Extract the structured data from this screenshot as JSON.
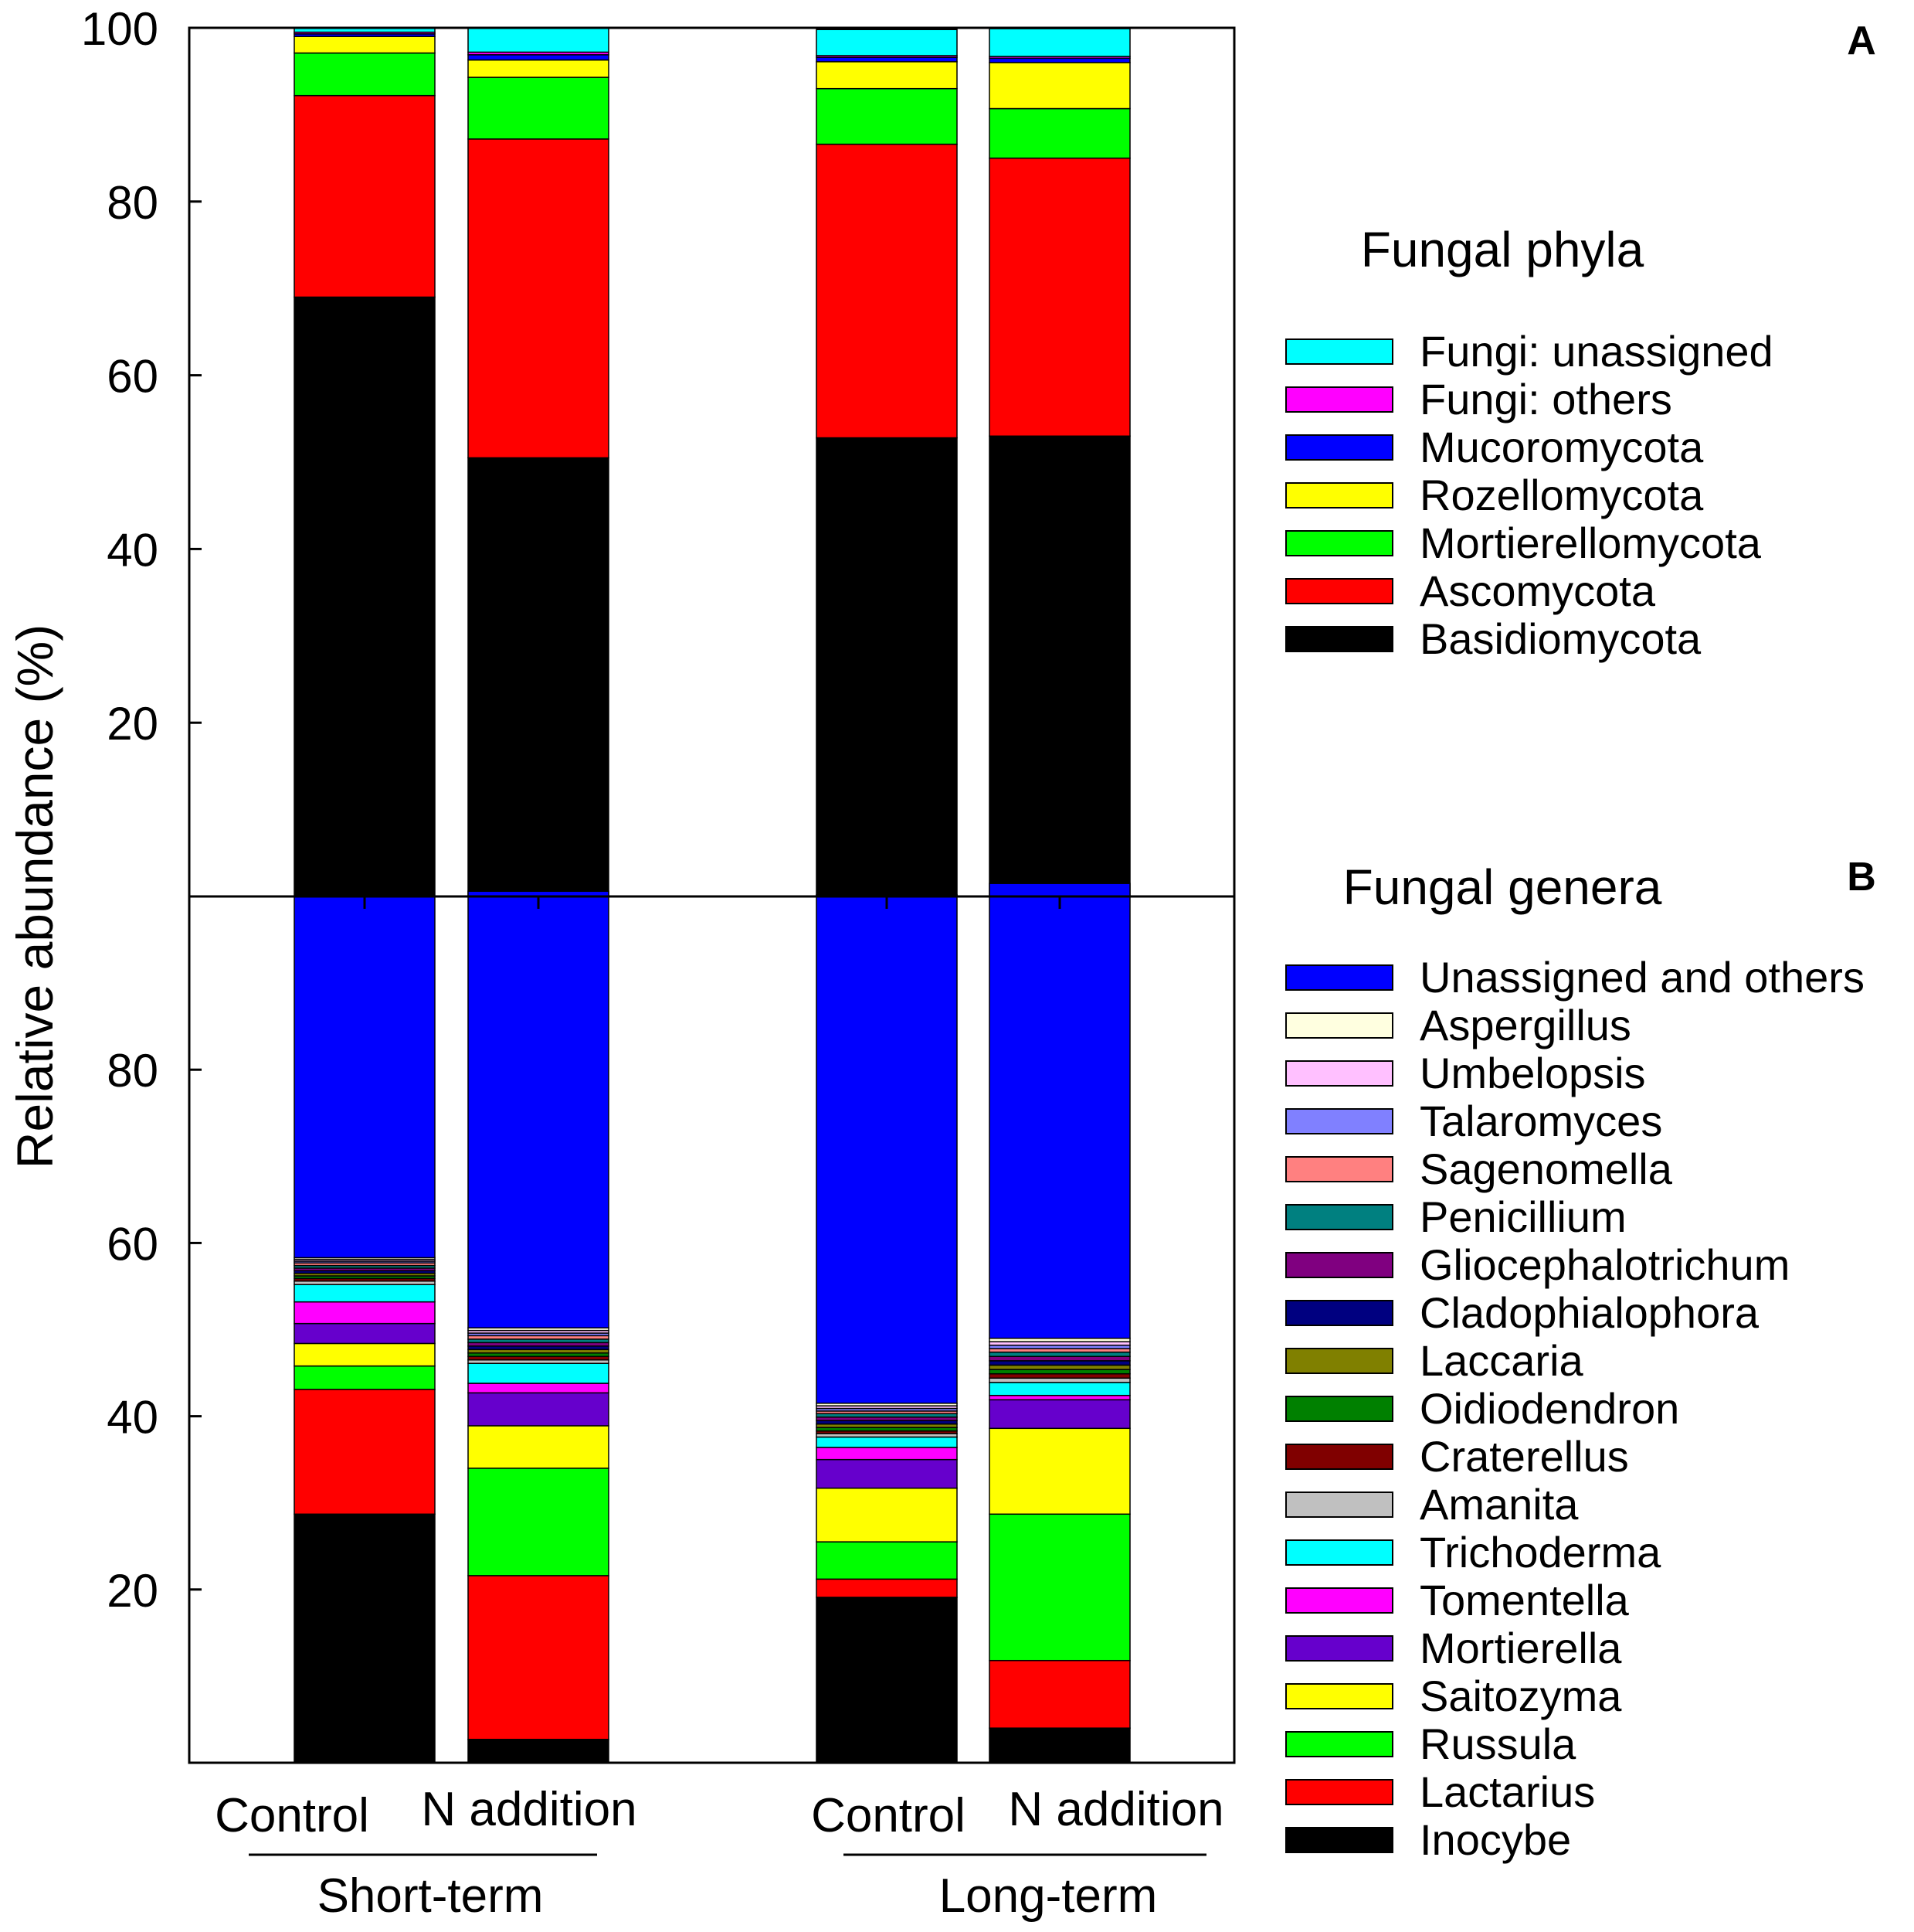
{
  "chart_data": {
    "type": "bar",
    "stacked": true,
    "ylabel": "Relative abundance (%)",
    "categories": [
      "Control",
      "N addition",
      "Control",
      "N addition"
    ],
    "groups": [
      {
        "label": "Short-term",
        "categories": [
          0,
          1
        ]
      },
      {
        "label": "Long-term",
        "categories": [
          2,
          3
        ]
      }
    ],
    "panels": [
      {
        "panel_label": "A",
        "legend_title": "Fungal phyla",
        "ylim": [
          0,
          100
        ],
        "yticks": [
          20,
          40,
          60,
          80,
          100
        ],
        "series": [
          {
            "name": "Basidiomycota",
            "color": "#000000",
            "values": [
              69.0,
              50.5,
              52.8,
              53.0
            ]
          },
          {
            "name": "Ascomycota",
            "color": "#ff0000",
            "values": [
              23.2,
              36.7,
              33.8,
              32.0
            ]
          },
          {
            "name": "Mortierellomycota",
            "color": "#00ff00",
            "values": [
              4.9,
              7.1,
              6.4,
              5.7
            ]
          },
          {
            "name": "Rozellomycota",
            "color": "#ffff00",
            "values": [
              1.9,
              2.0,
              3.1,
              5.3
            ]
          },
          {
            "name": "Mucoromycota",
            "color": "#0000ff",
            "values": [
              0.3,
              0.6,
              0.5,
              0.5
            ]
          },
          {
            "name": "Fungi: others",
            "color": "#ff00ff",
            "values": [
              0.2,
              0.3,
              0.2,
              0.2
            ]
          },
          {
            "name": "Fungi: unassigned",
            "color": "#00ffff",
            "values": [
              0.5,
              2.8,
              3.0,
              3.2
            ]
          }
        ]
      },
      {
        "panel_label": "B",
        "legend_title": "Fungal genera",
        "ylim": [
          0,
          100
        ],
        "yticks": [
          20,
          40,
          60,
          80
        ],
        "series": [
          {
            "name": "Inocybe",
            "color": "#000000",
            "values": [
              28.7,
              2.7,
              19.1,
              4.0
            ]
          },
          {
            "name": "Lactarius",
            "color": "#ff0000",
            "values": [
              14.4,
              18.9,
              2.1,
              7.8
            ]
          },
          {
            "name": "Russula",
            "color": "#00ff00",
            "values": [
              2.7,
              12.4,
              4.3,
              16.9
            ]
          },
          {
            "name": "Saitozyma",
            "color": "#ffff00",
            "values": [
              2.6,
              4.9,
              6.2,
              9.9
            ]
          },
          {
            "name": "Mortierella",
            "color": "#6600cc",
            "values": [
              2.3,
              3.8,
              3.3,
              3.3
            ]
          },
          {
            "name": "Tomentella",
            "color": "#ff00ff",
            "values": [
              2.5,
              1.1,
              1.4,
              0.5
            ]
          },
          {
            "name": "Trichoderma",
            "color": "#00ffff",
            "values": [
              2.0,
              2.3,
              1.2,
              1.5
            ]
          },
          {
            "name": "Amanita",
            "color": "#c0c0c0",
            "values": [
              0.4,
              0.4,
              0.4,
              0.5
            ]
          },
          {
            "name": "Craterellus",
            "color": "#800000",
            "values": [
              0.3,
              0.4,
              0.3,
              0.5
            ]
          },
          {
            "name": "Oidiodendron",
            "color": "#008000",
            "values": [
              0.3,
              0.4,
              0.4,
              0.5
            ]
          },
          {
            "name": "Laccaria",
            "color": "#808000",
            "values": [
              0.3,
              0.4,
              0.4,
              0.5
            ]
          },
          {
            "name": "Cladophialophora",
            "color": "#000080",
            "values": [
              0.3,
              0.4,
              0.4,
              0.5
            ]
          },
          {
            "name": "Gliocephalotrichum",
            "color": "#800080",
            "values": [
              0.3,
              0.4,
              0.4,
              0.5
            ]
          },
          {
            "name": "Penicillium",
            "color": "#008080",
            "values": [
              0.3,
              0.4,
              0.4,
              0.5
            ]
          },
          {
            "name": "Sagenomella",
            "color": "#ff8080",
            "values": [
              0.3,
              0.4,
              0.3,
              0.4
            ]
          },
          {
            "name": "Talaromyces",
            "color": "#8080ff",
            "values": [
              0.2,
              0.3,
              0.3,
              0.4
            ]
          },
          {
            "name": "Umbelopsis",
            "color": "#ffc0ff",
            "values": [
              0.2,
              0.3,
              0.3,
              0.4
            ]
          },
          {
            "name": "Aspergillus",
            "color": "#ffffe0",
            "values": [
              0.2,
              0.3,
              0.3,
              0.4
            ]
          },
          {
            "name": "Unassigned and others",
            "color": "#0000ff",
            "values": [
              41.7,
              50.4,
              58.7,
              52.5
            ]
          }
        ]
      }
    ]
  }
}
